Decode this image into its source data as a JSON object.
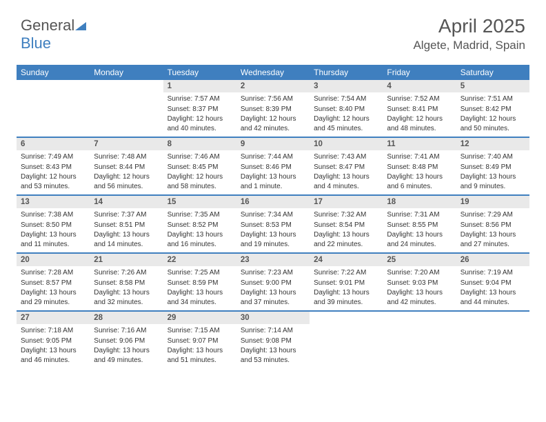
{
  "brand": {
    "part1": "General",
    "part2": "Blue"
  },
  "title": "April 2025",
  "location": "Algete, Madrid, Spain",
  "colors": {
    "header_bg": "#3f7fbf",
    "header_text": "#ffffff",
    "daynum_bg": "#e9e9e9",
    "border": "#3f7fbf",
    "text": "#333333"
  },
  "daysOfWeek": [
    "Sunday",
    "Monday",
    "Tuesday",
    "Wednesday",
    "Thursday",
    "Friday",
    "Saturday"
  ],
  "grid": {
    "leadingBlanks": 2,
    "days": [
      {
        "n": 1,
        "sunrise": "7:57 AM",
        "sunset": "8:37 PM",
        "daylight": "12 hours and 40 minutes."
      },
      {
        "n": 2,
        "sunrise": "7:56 AM",
        "sunset": "8:39 PM",
        "daylight": "12 hours and 42 minutes."
      },
      {
        "n": 3,
        "sunrise": "7:54 AM",
        "sunset": "8:40 PM",
        "daylight": "12 hours and 45 minutes."
      },
      {
        "n": 4,
        "sunrise": "7:52 AM",
        "sunset": "8:41 PM",
        "daylight": "12 hours and 48 minutes."
      },
      {
        "n": 5,
        "sunrise": "7:51 AM",
        "sunset": "8:42 PM",
        "daylight": "12 hours and 50 minutes."
      },
      {
        "n": 6,
        "sunrise": "7:49 AM",
        "sunset": "8:43 PM",
        "daylight": "12 hours and 53 minutes."
      },
      {
        "n": 7,
        "sunrise": "7:48 AM",
        "sunset": "8:44 PM",
        "daylight": "12 hours and 56 minutes."
      },
      {
        "n": 8,
        "sunrise": "7:46 AM",
        "sunset": "8:45 PM",
        "daylight": "12 hours and 58 minutes."
      },
      {
        "n": 9,
        "sunrise": "7:44 AM",
        "sunset": "8:46 PM",
        "daylight": "13 hours and 1 minute."
      },
      {
        "n": 10,
        "sunrise": "7:43 AM",
        "sunset": "8:47 PM",
        "daylight": "13 hours and 4 minutes."
      },
      {
        "n": 11,
        "sunrise": "7:41 AM",
        "sunset": "8:48 PM",
        "daylight": "13 hours and 6 minutes."
      },
      {
        "n": 12,
        "sunrise": "7:40 AM",
        "sunset": "8:49 PM",
        "daylight": "13 hours and 9 minutes."
      },
      {
        "n": 13,
        "sunrise": "7:38 AM",
        "sunset": "8:50 PM",
        "daylight": "13 hours and 11 minutes."
      },
      {
        "n": 14,
        "sunrise": "7:37 AM",
        "sunset": "8:51 PM",
        "daylight": "13 hours and 14 minutes."
      },
      {
        "n": 15,
        "sunrise": "7:35 AM",
        "sunset": "8:52 PM",
        "daylight": "13 hours and 16 minutes."
      },
      {
        "n": 16,
        "sunrise": "7:34 AM",
        "sunset": "8:53 PM",
        "daylight": "13 hours and 19 minutes."
      },
      {
        "n": 17,
        "sunrise": "7:32 AM",
        "sunset": "8:54 PM",
        "daylight": "13 hours and 22 minutes."
      },
      {
        "n": 18,
        "sunrise": "7:31 AM",
        "sunset": "8:55 PM",
        "daylight": "13 hours and 24 minutes."
      },
      {
        "n": 19,
        "sunrise": "7:29 AM",
        "sunset": "8:56 PM",
        "daylight": "13 hours and 27 minutes."
      },
      {
        "n": 20,
        "sunrise": "7:28 AM",
        "sunset": "8:57 PM",
        "daylight": "13 hours and 29 minutes."
      },
      {
        "n": 21,
        "sunrise": "7:26 AM",
        "sunset": "8:58 PM",
        "daylight": "13 hours and 32 minutes."
      },
      {
        "n": 22,
        "sunrise": "7:25 AM",
        "sunset": "8:59 PM",
        "daylight": "13 hours and 34 minutes."
      },
      {
        "n": 23,
        "sunrise": "7:23 AM",
        "sunset": "9:00 PM",
        "daylight": "13 hours and 37 minutes."
      },
      {
        "n": 24,
        "sunrise": "7:22 AM",
        "sunset": "9:01 PM",
        "daylight": "13 hours and 39 minutes."
      },
      {
        "n": 25,
        "sunrise": "7:20 AM",
        "sunset": "9:03 PM",
        "daylight": "13 hours and 42 minutes."
      },
      {
        "n": 26,
        "sunrise": "7:19 AM",
        "sunset": "9:04 PM",
        "daylight": "13 hours and 44 minutes."
      },
      {
        "n": 27,
        "sunrise": "7:18 AM",
        "sunset": "9:05 PM",
        "daylight": "13 hours and 46 minutes."
      },
      {
        "n": 28,
        "sunrise": "7:16 AM",
        "sunset": "9:06 PM",
        "daylight": "13 hours and 49 minutes."
      },
      {
        "n": 29,
        "sunrise": "7:15 AM",
        "sunset": "9:07 PM",
        "daylight": "13 hours and 51 minutes."
      },
      {
        "n": 30,
        "sunrise": "7:14 AM",
        "sunset": "9:08 PM",
        "daylight": "13 hours and 53 minutes."
      }
    ]
  },
  "labels": {
    "sunrise": "Sunrise:",
    "sunset": "Sunset:",
    "daylight": "Daylight:"
  }
}
